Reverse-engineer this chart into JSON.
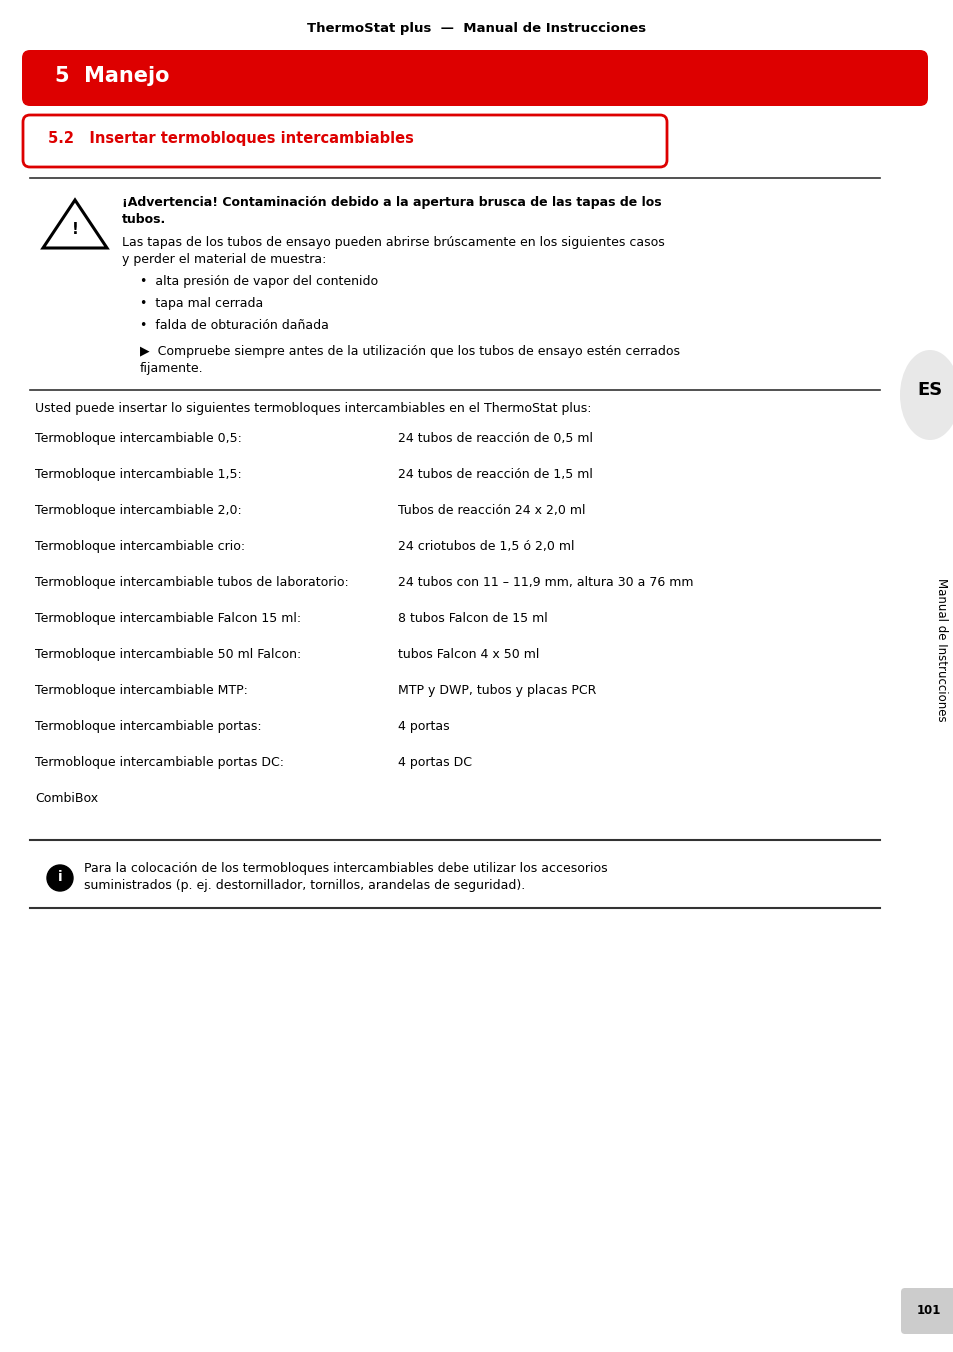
{
  "page_title": "ThermoStat plus  —  Manual de Instrucciones",
  "section_header": "5  Manejo",
  "subsection_header": "5.2   Insertar termobloques intercambiables",
  "warning_title_bold": "¡Advertencia! Contaminación debido a la apertura brusca de las tapas de los\ntubos.",
  "warning_body": "Las tapas de los tubos de ensayo pueden abrirse brúscamente en los siguientes casos\ny perder el material de muestra:",
  "warning_bullets": [
    "alta presión de vapor del contenido",
    "tapa mal cerrada",
    "falda de obturación dañada"
  ],
  "warning_action": "Compruebe siempre antes de la utilización que los tubos de ensayo estén cerrados\nfijamente.",
  "intro_text": "Usted puede insertar lo siguientes termobloques intercambiables en el ThermoStat plus:",
  "table_rows": [
    [
      "Termobloque intercambiable 0,5:",
      "24 tubos de reacción de 0,5 ml"
    ],
    [
      "Termobloque intercambiable 1,5:",
      "24 tubos de reacción de 1,5 ml"
    ],
    [
      "Termobloque intercambiable 2,0:",
      "Tubos de reacción 24 x 2,0 ml"
    ],
    [
      "Termobloque intercambiable crio:",
      "24 criotubos de 1,5 ó 2,0 ml"
    ],
    [
      "Termobloque intercambiable tubos de laboratorio:",
      "24 tubos con 11 – 11,9 mm, altura 30 a 76 mm"
    ],
    [
      "Termobloque intercambiable Falcon 15 ml:",
      "8 tubos Falcon de 15 ml"
    ],
    [
      "Termobloque intercambiable 50 ml Falcon:",
      "tubos Falcon 4 x 50 ml"
    ],
    [
      "Termobloque intercambiable MTP:",
      "MTP y DWP, tubos y placas PCR"
    ],
    [
      "Termobloque intercambiable portas:",
      "4 portas"
    ],
    [
      "Termobloque intercambiable portas DC:",
      "4 portas DC"
    ],
    [
      "CombiBox",
      ""
    ]
  ],
  "info_text": "Para la colocación de los termobloques intercambiables debe utilizar los accesorios\nsuministrados (p. ej. destornillador, tornillos, arandelas de seguridad).",
  "side_text": "Manual de Instrucciones",
  "es_label": "ES",
  "page_number": "101",
  "red_color": "#DD0000",
  "bg_color": "#FFFFFF",
  "text_color": "#000000",
  "gray_color": "#CCCCCC",
  "light_gray": "#E8E8E8"
}
